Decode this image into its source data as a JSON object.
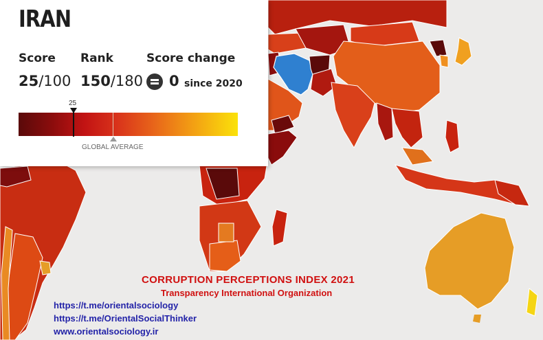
{
  "card": {
    "country": "IRAN",
    "score_label": "Score",
    "score_value": "25",
    "score_max": "/100",
    "rank_label": "Rank",
    "rank_value": "150",
    "rank_max": "/180",
    "change_label": "Score change",
    "change_value": "0",
    "change_since": "since 2020",
    "change_icon": "equals-icon",
    "scale_marker": "25",
    "global_average_label": "GLOBAL AVERAGE"
  },
  "scale": {
    "min": 0,
    "max": 100,
    "country_score": 25,
    "colors": [
      "#5a0a0a",
      "#8a0c0c",
      "#c21313",
      "#d9331b",
      "#e8661a",
      "#f29a14",
      "#fbe20a"
    ]
  },
  "map_colors": {
    "ocean": "#ecebea",
    "highlight_iran": "#2f80d0",
    "australia": "#e69d26",
    "border": "#ffffff"
  },
  "footer": {
    "title": "CORRUPTION PERCEPTIONS INDEX 2021",
    "org": "Transparency International Organization",
    "links": [
      "https://t.me/orientalsociology",
      "https://t.me/OrientalSocialThinker",
      "www.orientalsociology.ir"
    ]
  }
}
